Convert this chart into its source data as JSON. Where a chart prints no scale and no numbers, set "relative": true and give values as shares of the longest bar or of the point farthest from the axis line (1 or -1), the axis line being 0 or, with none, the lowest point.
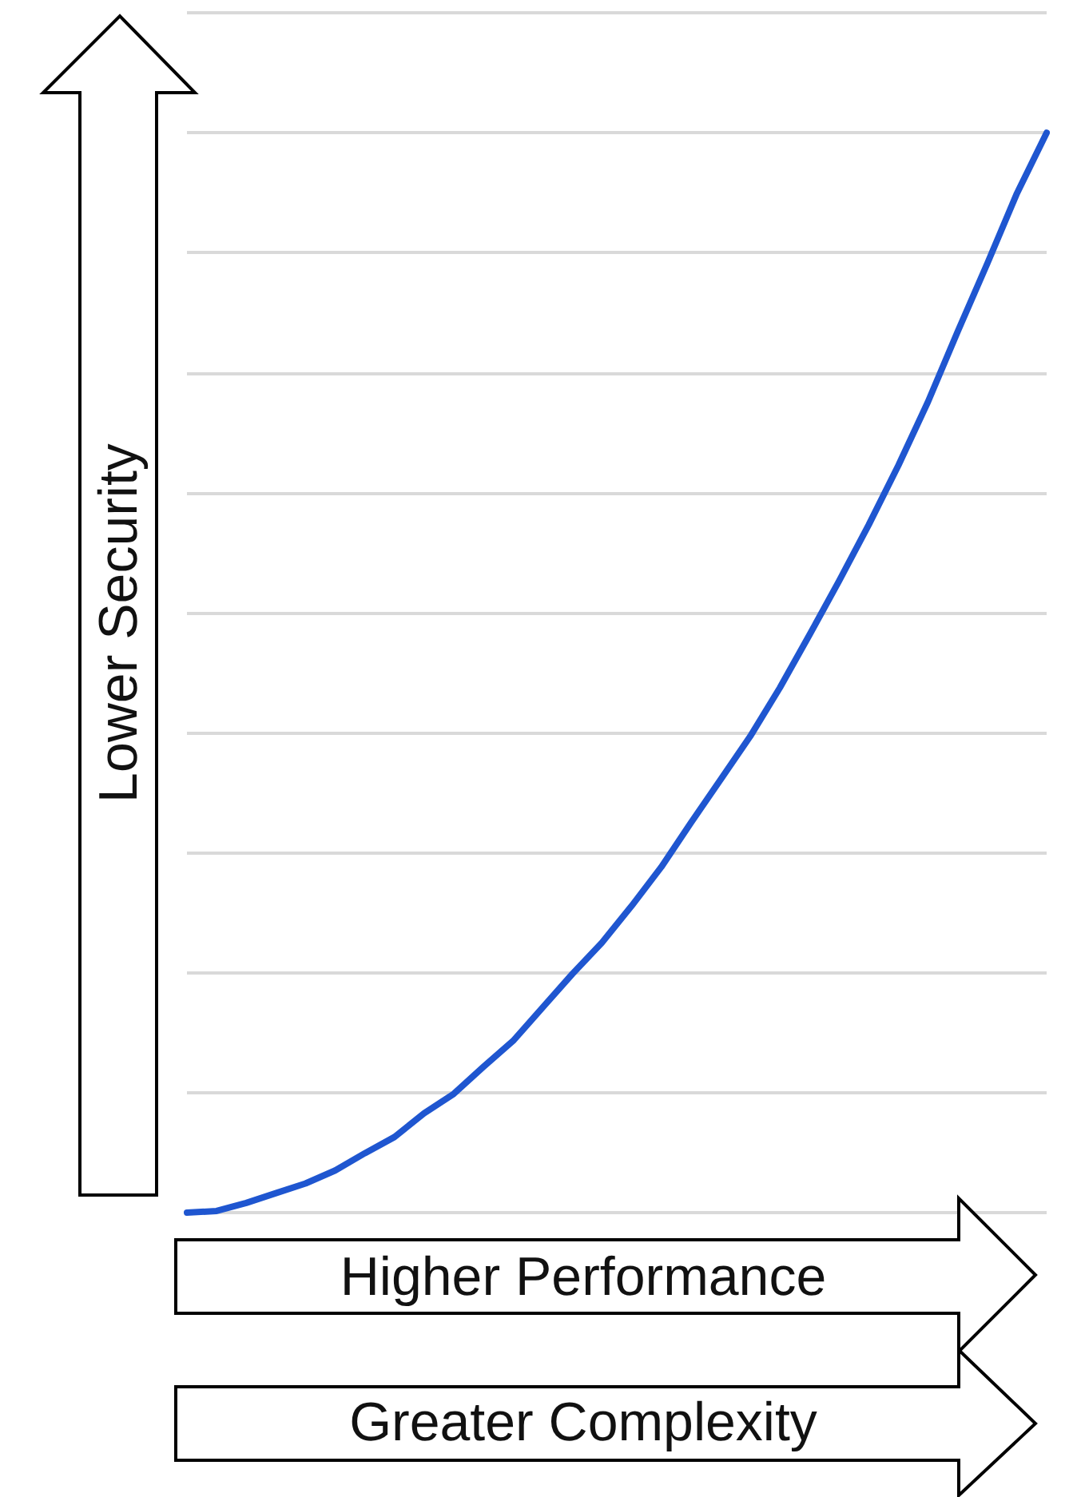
{
  "chart_data": {
    "type": "line",
    "relative": true,
    "ylabel": "Lower Security",
    "annotations": [
      "Higher Performance",
      "Greater Complexity"
    ],
    "grid": "y",
    "marker": "none",
    "line_style": "solid",
    "categories": [
      null,
      null,
      null,
      null,
      null,
      null,
      null,
      null,
      null,
      null,
      null,
      null,
      null,
      null,
      null,
      null,
      null,
      null,
      null,
      null,
      null,
      null,
      null,
      null,
      null,
      null,
      null,
      null,
      null,
      null
    ],
    "series": [
      {
        "color": "#1f56d0",
        "values": [
          0,
          0.0015,
          0.009,
          0.018,
          0.027,
          0.039,
          0.055,
          0.07,
          0.092,
          0.11,
          0.135,
          0.159,
          0.19,
          0.221,
          0.25,
          0.284,
          0.32,
          0.361,
          0.401,
          0.441,
          0.486,
          0.535,
          0.585,
          0.637,
          0.692,
          0.751,
          0.816,
          0.879,
          0.944,
          1
        ]
      }
    ]
  }
}
